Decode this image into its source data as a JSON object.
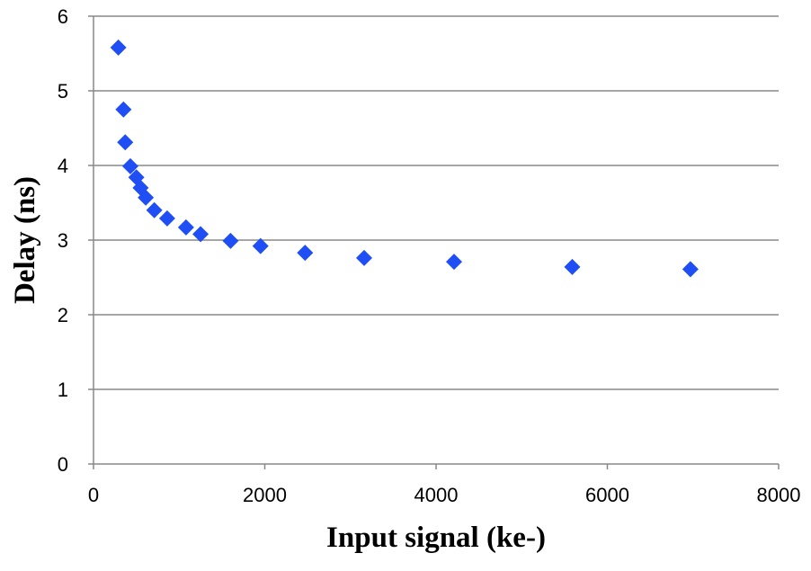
{
  "chart_data": {
    "type": "scatter",
    "x_label": "Input signal (ke-)",
    "y_label": "Delay (ns)",
    "x": [
      290,
      350,
      370,
      430,
      500,
      550,
      610,
      710,
      860,
      1080,
      1250,
      1600,
      1950,
      2470,
      3160,
      4210,
      5590,
      6970
    ],
    "series": [
      {
        "name": "Delay",
        "color": "#1f4ef5",
        "values": [
          5.58,
          4.75,
          4.31,
          3.99,
          3.84,
          3.7,
          3.57,
          3.4,
          3.29,
          3.17,
          3.08,
          2.99,
          2.92,
          2.83,
          2.76,
          2.71,
          2.64,
          2.61
        ]
      }
    ],
    "xlim": [
      0,
      8000
    ],
    "xticks": [
      0,
      2000,
      4000,
      6000,
      8000
    ],
    "ylim": [
      0,
      6
    ],
    "yticks": [
      0,
      1,
      2,
      3,
      4,
      5,
      6
    ],
    "grid": true
  }
}
